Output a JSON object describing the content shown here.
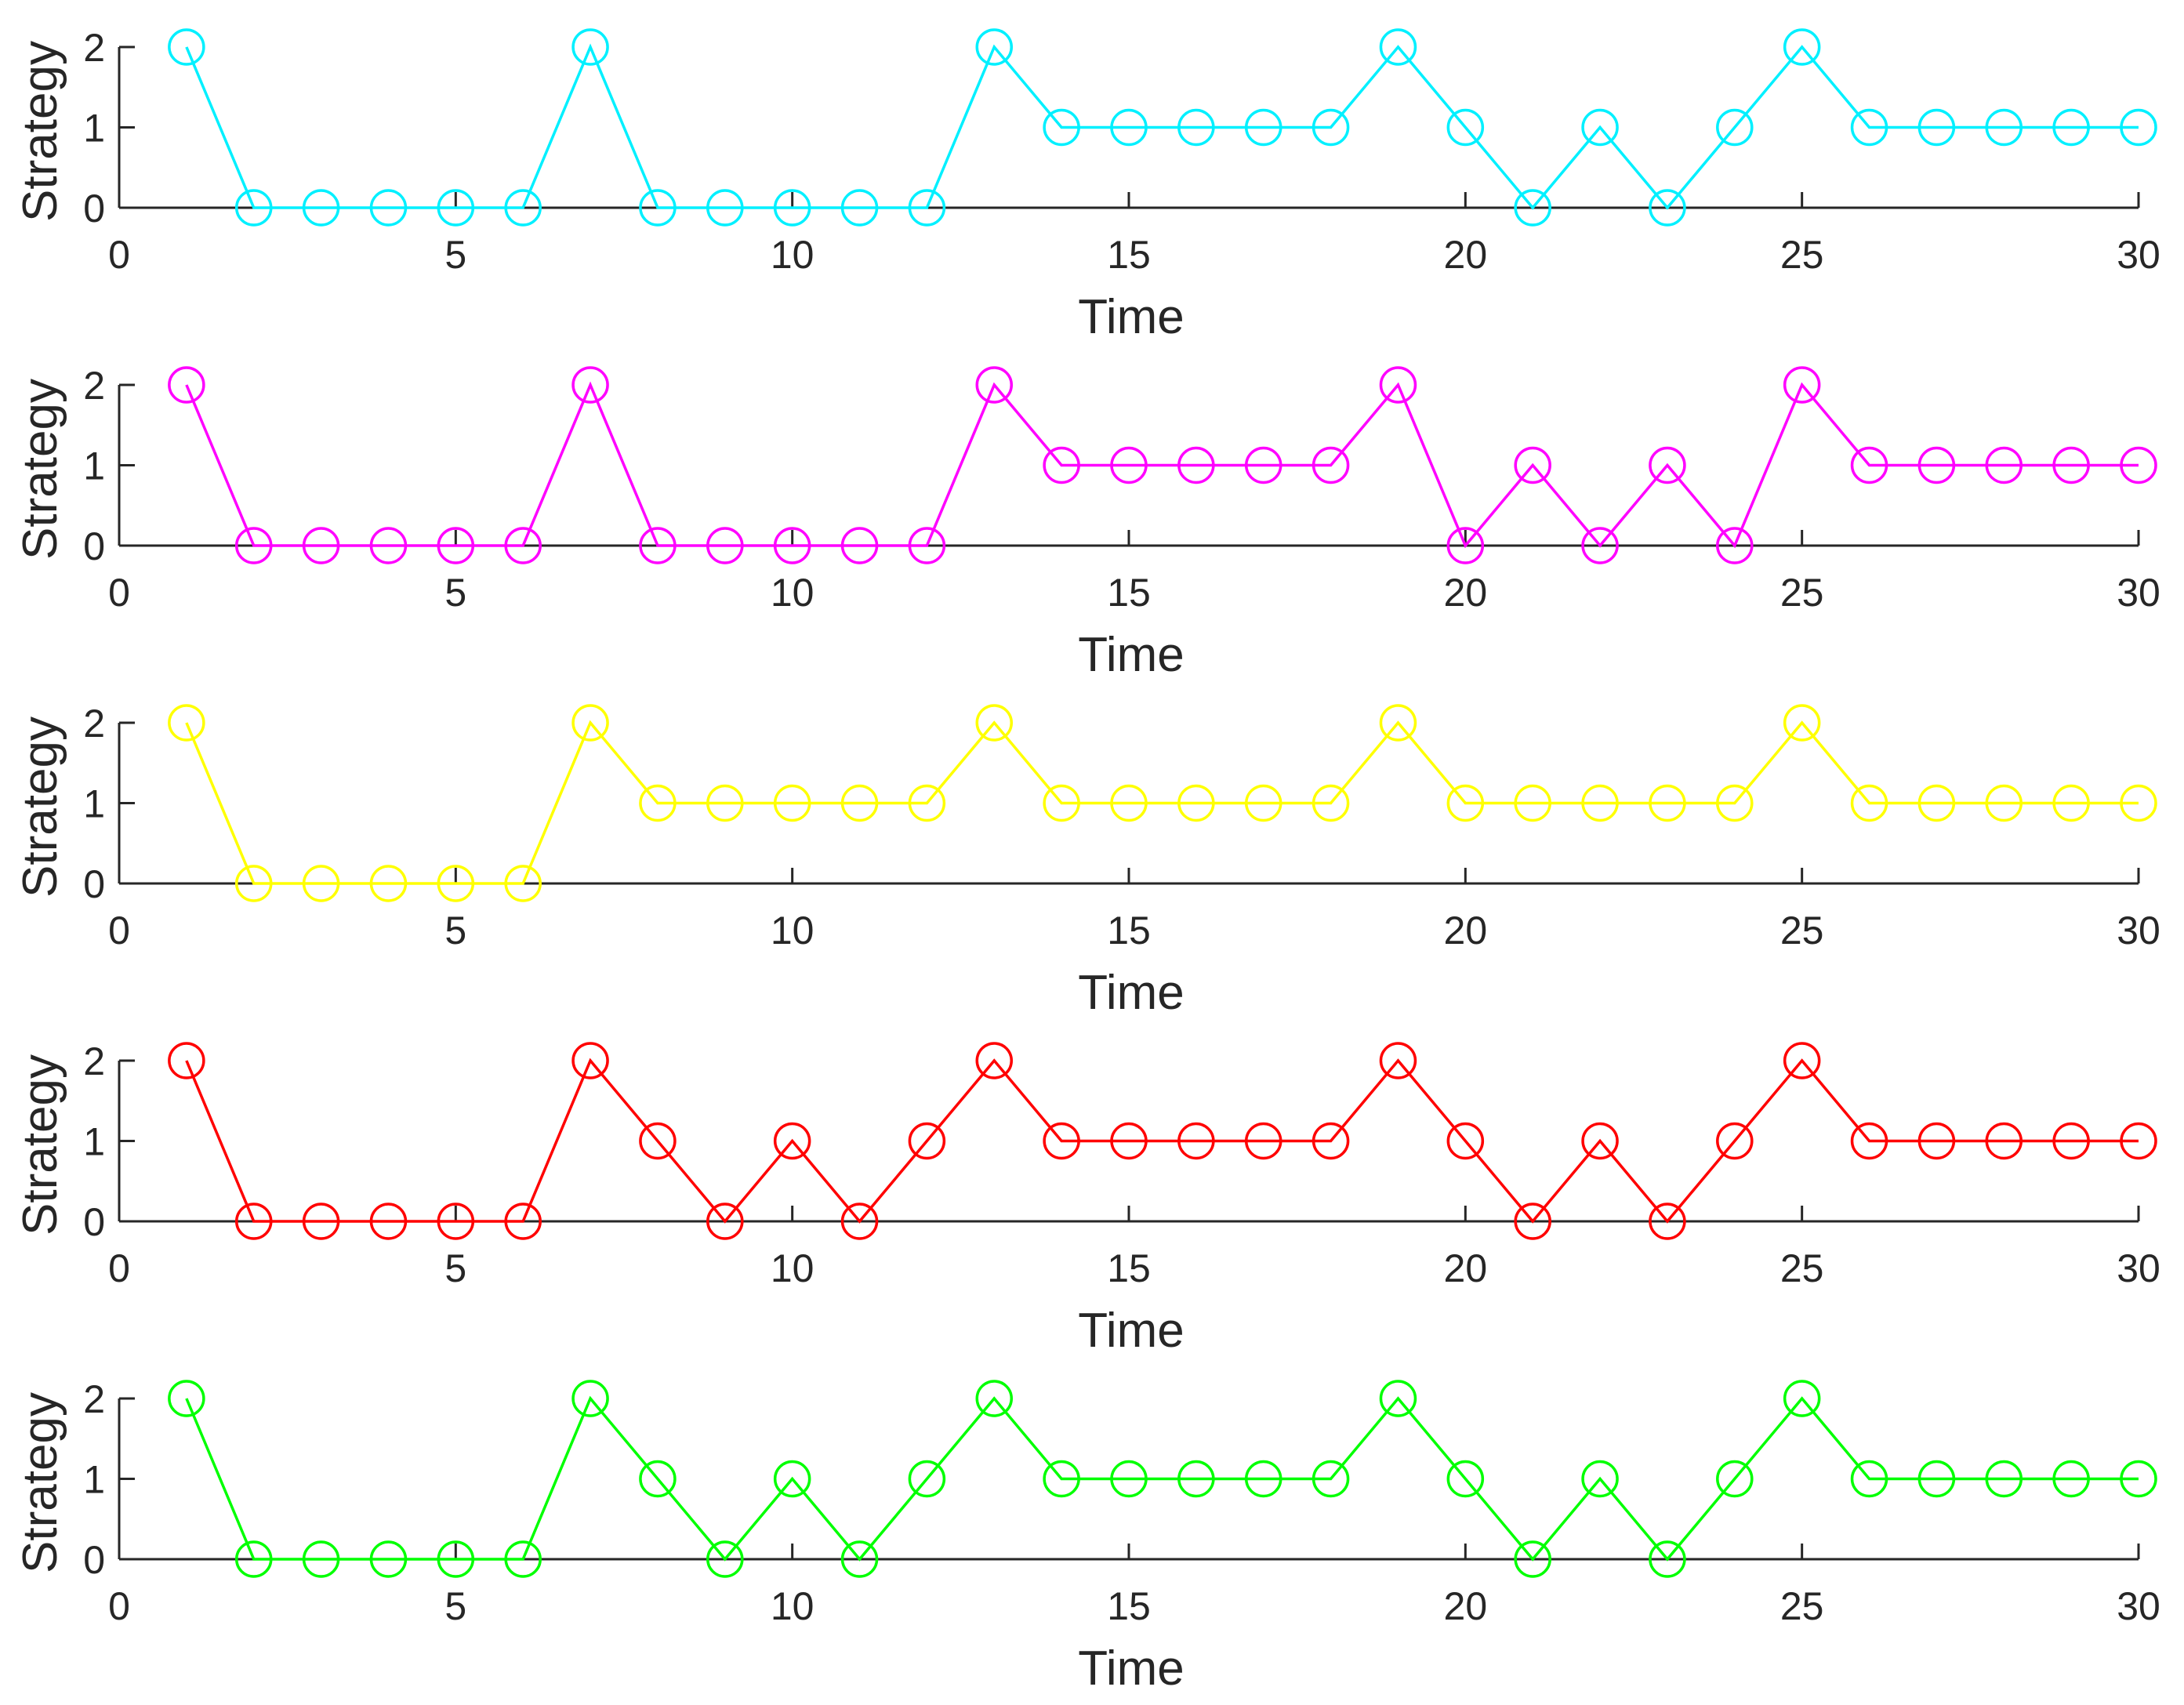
{
  "chart_data": [
    {
      "type": "line",
      "color": "#00f0ff",
      "xlabel": "Time",
      "ylabel": "Strategy",
      "xlim": [
        0,
        30
      ],
      "ylim": [
        0,
        2
      ],
      "xticks": [
        0,
        5,
        10,
        15,
        20,
        25,
        30
      ],
      "yticks": [
        0,
        1,
        2
      ],
      "x": [
        1,
        2,
        3,
        4,
        5,
        6,
        7,
        8,
        9,
        10,
        11,
        12,
        13,
        14,
        15,
        16,
        17,
        18,
        19,
        20,
        21,
        22,
        23,
        24,
        25,
        26,
        27,
        28,
        29,
        30
      ],
      "values": [
        2,
        0,
        0,
        0,
        0,
        0,
        2,
        0,
        0,
        0,
        0,
        0,
        2,
        1,
        1,
        1,
        1,
        1,
        2,
        1,
        0,
        1,
        0,
        1,
        2,
        1,
        1,
        1,
        1,
        1
      ]
    },
    {
      "type": "line",
      "color": "#ff00ff",
      "xlabel": "Time",
      "ylabel": "Strategy",
      "xlim": [
        0,
        30
      ],
      "ylim": [
        0,
        2
      ],
      "xticks": [
        0,
        5,
        10,
        15,
        20,
        25,
        30
      ],
      "yticks": [
        0,
        1,
        2
      ],
      "x": [
        1,
        2,
        3,
        4,
        5,
        6,
        7,
        8,
        9,
        10,
        11,
        12,
        13,
        14,
        15,
        16,
        17,
        18,
        19,
        20,
        21,
        22,
        23,
        24,
        25,
        26,
        27,
        28,
        29,
        30
      ],
      "values": [
        2,
        0,
        0,
        0,
        0,
        0,
        2,
        0,
        0,
        0,
        0,
        0,
        2,
        1,
        1,
        1,
        1,
        1,
        2,
        0,
        1,
        0,
        1,
        0,
        2,
        1,
        1,
        1,
        1,
        1
      ]
    },
    {
      "type": "line",
      "color": "#ffff00",
      "xlabel": "Time",
      "ylabel": "Strategy",
      "xlim": [
        0,
        30
      ],
      "ylim": [
        0,
        2
      ],
      "xticks": [
        0,
        5,
        10,
        15,
        20,
        25,
        30
      ],
      "yticks": [
        0,
        1,
        2
      ],
      "x": [
        1,
        2,
        3,
        4,
        5,
        6,
        7,
        8,
        9,
        10,
        11,
        12,
        13,
        14,
        15,
        16,
        17,
        18,
        19,
        20,
        21,
        22,
        23,
        24,
        25,
        26,
        27,
        28,
        29,
        30
      ],
      "values": [
        2,
        0,
        0,
        0,
        0,
        0,
        2,
        1,
        1,
        1,
        1,
        1,
        2,
        1,
        1,
        1,
        1,
        1,
        2,
        1,
        1,
        1,
        1,
        1,
        2,
        1,
        1,
        1,
        1,
        1
      ]
    },
    {
      "type": "line",
      "color": "#ff0000",
      "xlabel": "Time",
      "ylabel": "Strategy",
      "xlim": [
        0,
        30
      ],
      "ylim": [
        0,
        2
      ],
      "xticks": [
        0,
        5,
        10,
        15,
        20,
        25,
        30
      ],
      "yticks": [
        0,
        1,
        2
      ],
      "x": [
        1,
        2,
        3,
        4,
        5,
        6,
        7,
        8,
        9,
        10,
        11,
        12,
        13,
        14,
        15,
        16,
        17,
        18,
        19,
        20,
        21,
        22,
        23,
        24,
        25,
        26,
        27,
        28,
        29,
        30
      ],
      "values": [
        2,
        0,
        0,
        0,
        0,
        0,
        2,
        1,
        0,
        1,
        0,
        1,
        2,
        1,
        1,
        1,
        1,
        1,
        2,
        1,
        0,
        1,
        0,
        1,
        2,
        1,
        1,
        1,
        1,
        1
      ]
    },
    {
      "type": "line",
      "color": "#00ff00",
      "xlabel": "Time",
      "ylabel": "Strategy",
      "xlim": [
        0,
        30
      ],
      "ylim": [
        0,
        2
      ],
      "xticks": [
        0,
        5,
        10,
        15,
        20,
        25,
        30
      ],
      "yticks": [
        0,
        1,
        2
      ],
      "x": [
        1,
        2,
        3,
        4,
        5,
        6,
        7,
        8,
        9,
        10,
        11,
        12,
        13,
        14,
        15,
        16,
        17,
        18,
        19,
        20,
        21,
        22,
        23,
        24,
        25,
        26,
        27,
        28,
        29,
        30
      ],
      "values": [
        2,
        0,
        0,
        0,
        0,
        0,
        2,
        1,
        0,
        1,
        0,
        1,
        2,
        1,
        1,
        1,
        1,
        1,
        2,
        1,
        0,
        1,
        0,
        1,
        2,
        1,
        1,
        1,
        1,
        1
      ]
    }
  ]
}
